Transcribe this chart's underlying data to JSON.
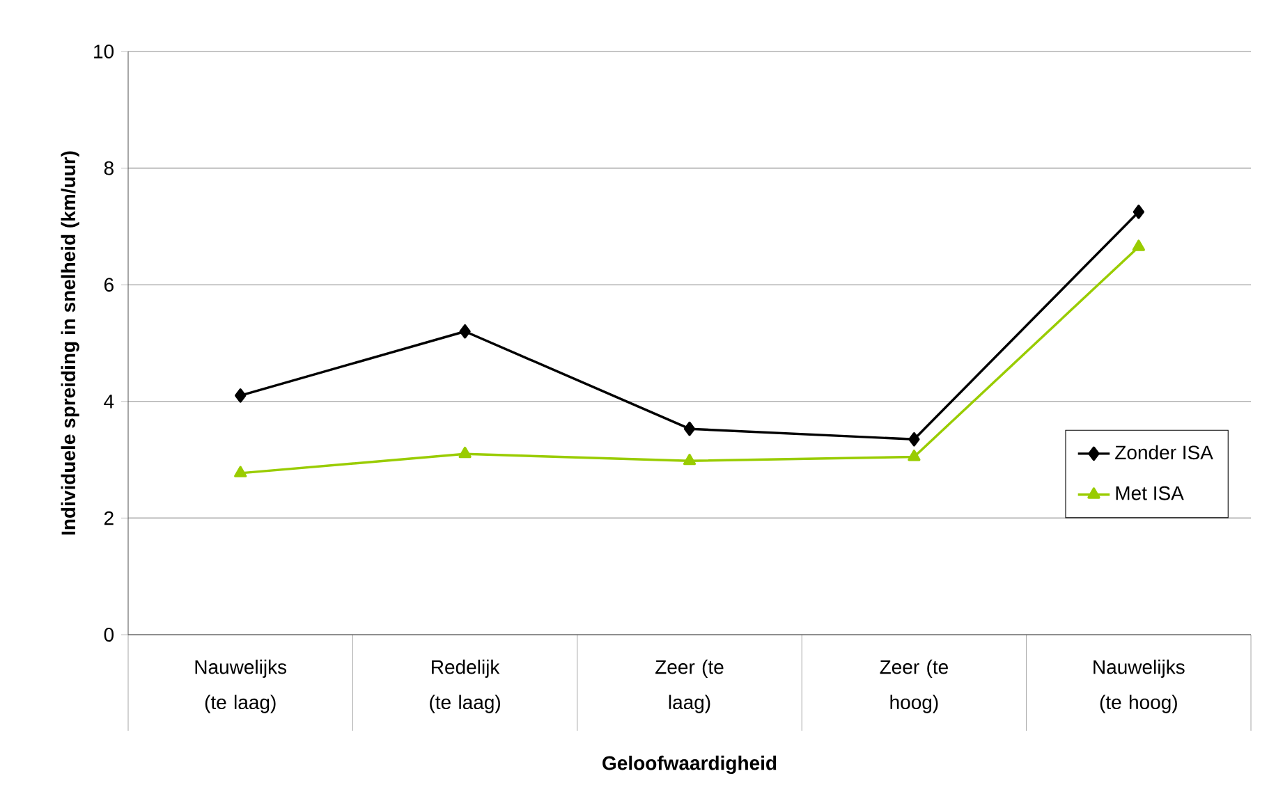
{
  "chart_data": {
    "type": "line",
    "xlabel": "Geloofwaardigheid",
    "ylabel": "Individuele spreiding in snelheid (km/uur)",
    "categories": [
      "Nauwelijks (te laag)",
      "Redelijk (te laag)",
      "Zeer (te laag)",
      "Zeer (te hoog)",
      "Nauwelijks (te hoog)"
    ],
    "series": [
      {
        "name": "Zonder ISA",
        "color": "#000000",
        "marker": "diamond",
        "values": [
          4.1,
          5.2,
          3.53,
          3.35,
          7.25
        ]
      },
      {
        "name": "Met ISA",
        "color": "#99cc00",
        "marker": "triangle",
        "values": [
          2.77,
          3.1,
          2.98,
          3.05,
          6.65
        ]
      }
    ],
    "ylim": [
      0,
      10
    ],
    "yticks": [
      0,
      2,
      4,
      6,
      8,
      10
    ],
    "grid": "y",
    "legend": "right",
    "line_style": "solid"
  }
}
